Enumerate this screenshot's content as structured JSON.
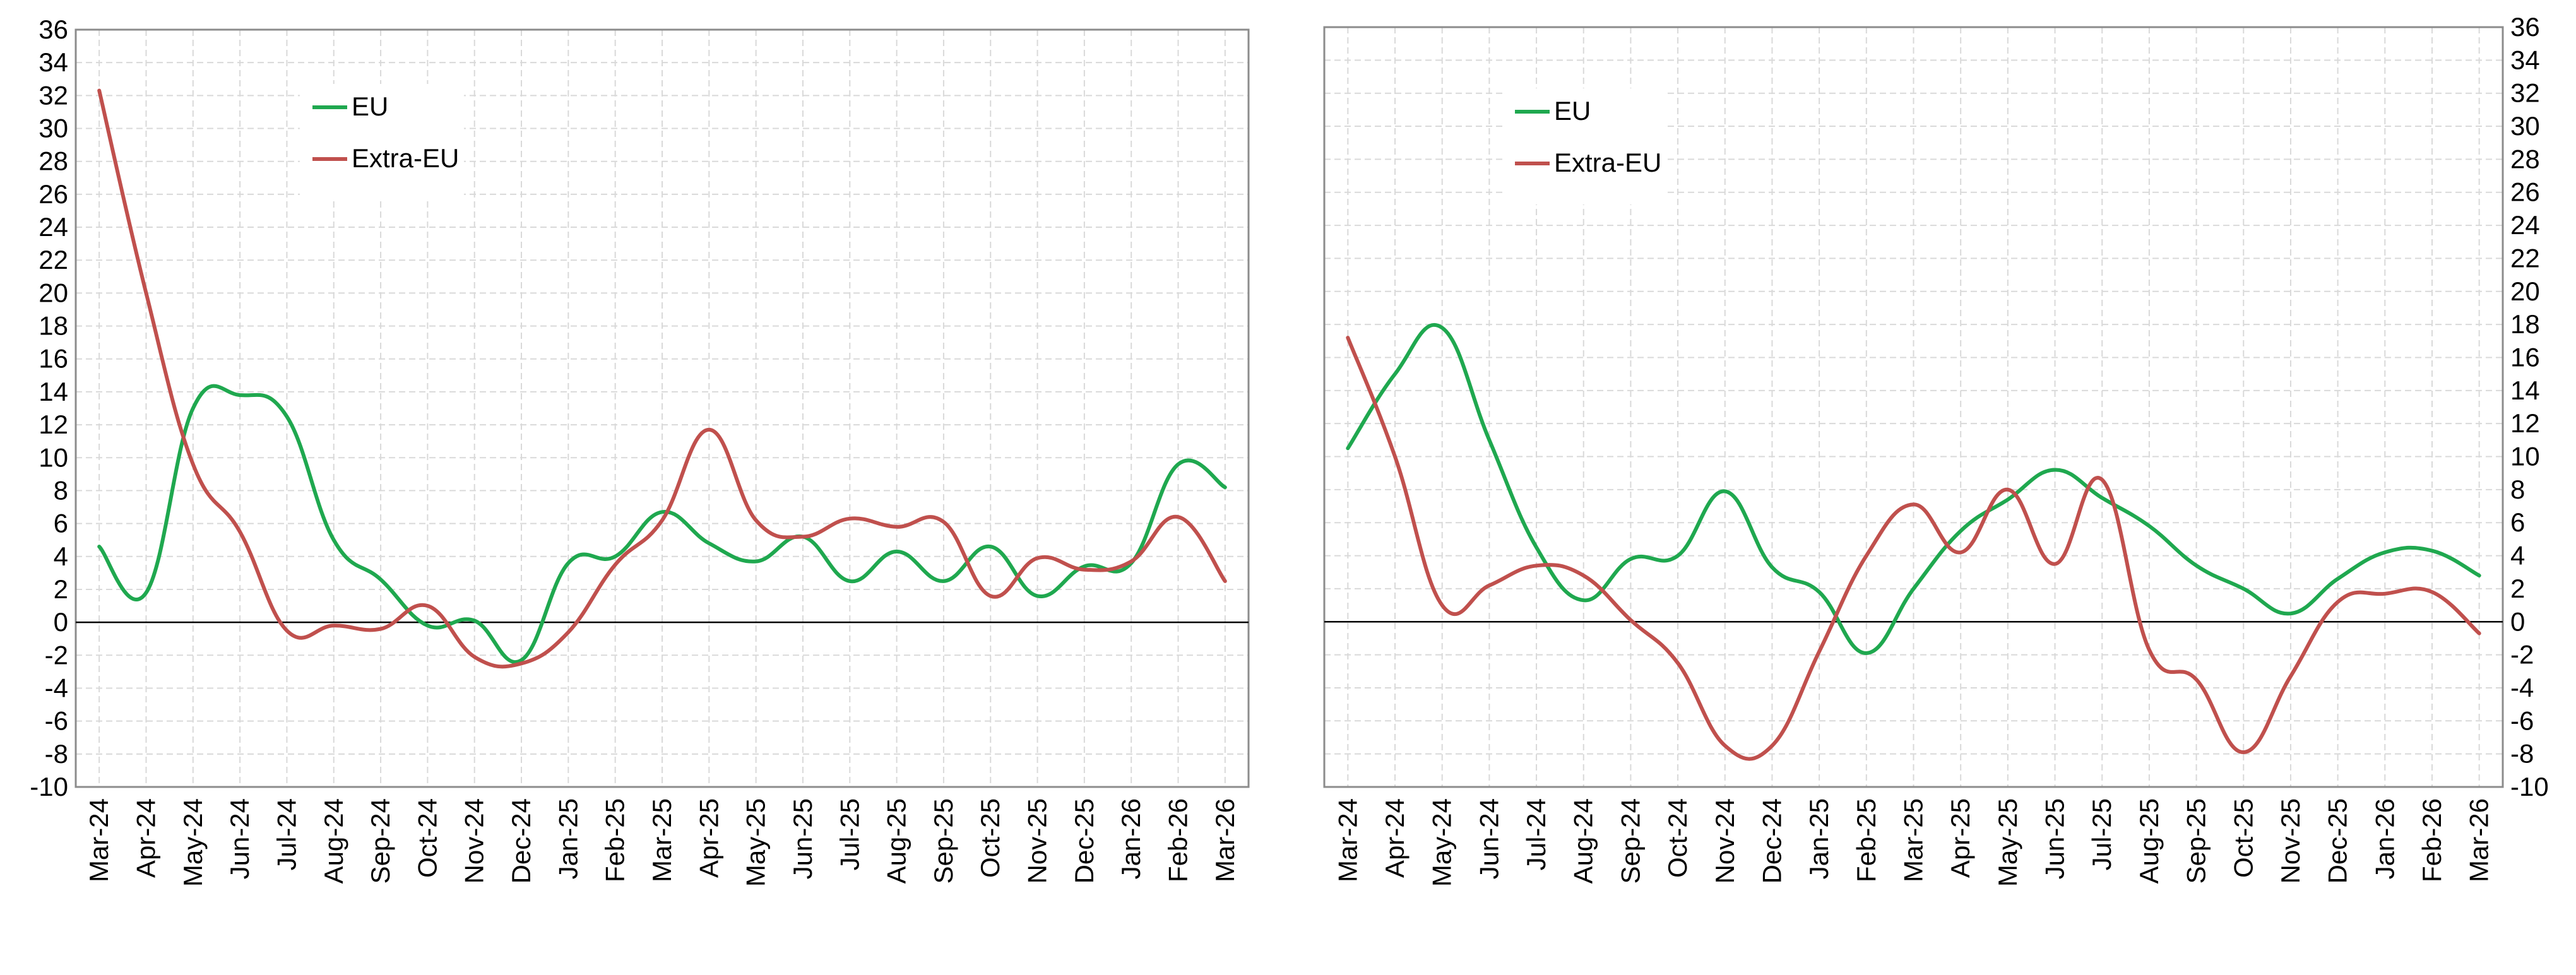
{
  "colors": {
    "eu": "#1fa84f",
    "extra_eu": "#c0504d",
    "grid": "#d9d9d9",
    "zero": "#000000",
    "frame": "#8c8c8c"
  },
  "chart_data": [
    {
      "type": "line",
      "title": "",
      "xlabel": "",
      "ylabel": "",
      "ylim": [
        -10,
        36
      ],
      "y_tick_step": 2,
      "y_axis_side": "left",
      "grid": true,
      "legend_placement": "top-left",
      "categories": [
        "Mar-24",
        "Apr-24",
        "May-24",
        "Jun-24",
        "Jul-24",
        "Aug-24",
        "Sep-24",
        "Oct-24",
        "Nov-24",
        "Dec-24",
        "Jan-25",
        "Feb-25",
        "Mar-25",
        "Apr-25",
        "May-25",
        "Jun-25",
        "Jul-25",
        "Aug-25",
        "Sep-25",
        "Oct-25",
        "Nov-25",
        "Dec-25",
        "Jan-26",
        "Feb-26",
        "Mar-26"
      ],
      "series": [
        {
          "name": "EU",
          "color_key": "eu",
          "values": [
            4.6,
            1.8,
            13.0,
            13.8,
            12.5,
            5.0,
            2.6,
            -0.2,
            0.1,
            -2.3,
            3.6,
            4.0,
            6.7,
            4.8,
            3.7,
            5.2,
            2.5,
            4.3,
            2.5,
            4.6,
            1.6,
            3.4,
            3.6,
            9.6,
            8.2
          ]
        },
        {
          "name": "Extra-EU",
          "color_key": "extra_eu",
          "values": [
            32.3,
            20.0,
            9.6,
            5.5,
            -0.5,
            -0.2,
            -0.4,
            1.0,
            -2.1,
            -2.5,
            -0.6,
            3.5,
            6.2,
            11.7,
            6.2,
            5.2,
            6.3,
            5.8,
            6.1,
            1.6,
            3.9,
            3.2,
            3.7,
            6.4,
            2.5
          ]
        }
      ]
    },
    {
      "type": "line",
      "title": "",
      "xlabel": "",
      "ylabel": "",
      "ylim": [
        -10,
        36
      ],
      "y_tick_step": 2,
      "y_axis_side": "right",
      "grid": true,
      "legend_placement": "top-left",
      "categories": [
        "Mar-24",
        "Apr-24",
        "May-24",
        "Jun-24",
        "Jul-24",
        "Aug-24",
        "Sep-24",
        "Oct-24",
        "Nov-24",
        "Dec-24",
        "Jan-25",
        "Feb-25",
        "Mar-25",
        "Apr-25",
        "May-25",
        "Jun-25",
        "Jul-25",
        "Aug-25",
        "Sep-25",
        "Oct-25",
        "Nov-25",
        "Dec-25",
        "Jan-26",
        "Feb-26",
        "Mar-26"
      ],
      "series": [
        {
          "name": "EU",
          "color_key": "eu",
          "values": [
            10.5,
            15.0,
            17.8,
            11.0,
            4.5,
            1.3,
            3.8,
            4.0,
            7.9,
            3.3,
            1.8,
            -1.9,
            2.0,
            5.5,
            7.4,
            9.2,
            7.5,
            5.8,
            3.4,
            2.0,
            0.5,
            2.6,
            4.2,
            4.3,
            2.8
          ]
        },
        {
          "name": "Extra-EU",
          "color_key": "extra_eu",
          "values": [
            17.2,
            10.0,
            1.0,
            2.2,
            3.4,
            2.8,
            0.1,
            -2.5,
            -7.5,
            -7.5,
            -1.8,
            4.0,
            7.1,
            4.2,
            8.0,
            3.5,
            8.6,
            -1.7,
            -3.5,
            -7.9,
            -3.3,
            1.2,
            1.7,
            1.8,
            -0.7
          ]
        }
      ]
    }
  ]
}
